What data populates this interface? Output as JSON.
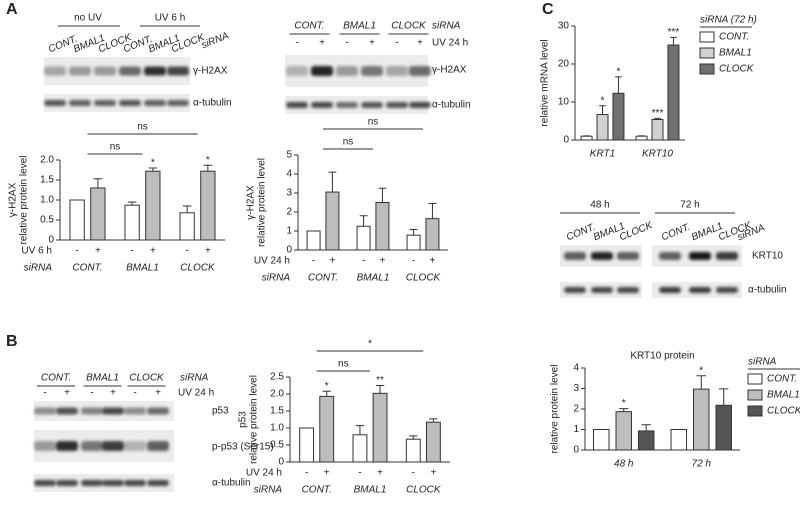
{
  "panel_labels": [
    "A",
    "B",
    "C"
  ],
  "blot_A1": {
    "groups": [
      "no UV",
      "UV 6 h"
    ],
    "lanes": [
      "CONT.",
      "BMAL1",
      "CLOCK",
      "CONT.",
      "BMAL1",
      "CLOCK"
    ],
    "lane_title": "siRNA",
    "rows": [
      "γ-H2AX",
      "α-tubulin"
    ]
  },
  "blot_A2": {
    "lanes": [
      "CONT.",
      "BMAL1",
      "CLOCK"
    ],
    "lane_title": "siRNA",
    "signs": [
      "-",
      "+",
      "-",
      "+",
      "-",
      "+"
    ],
    "sign_title": "UV 24 h",
    "rows": [
      "γ-H2AX",
      "α-tubulin"
    ]
  },
  "blot_B": {
    "lanes": [
      "CONT.",
      "BMAL1",
      "CLOCK"
    ],
    "lane_title": "siRNA",
    "signs": [
      "-",
      "+",
      "-",
      "+",
      "-",
      "+"
    ],
    "sign_title": "UV 24 h",
    "rows": [
      "p53",
      "p-p53 (Ser15)",
      "α-tubulin"
    ]
  },
  "blot_C": {
    "groups": [
      "48 h",
      "72 h"
    ],
    "lanes": [
      "CONT.",
      "BMAL1",
      "CLOCK",
      "CONT.",
      "BMAL1",
      "CLOCK"
    ],
    "lane_title": "siRNA",
    "rows": [
      "KRT10",
      "α-tubulin"
    ]
  },
  "chart_data": [
    {
      "type": "bar",
      "ylabel": [
        "γ-H2AX",
        "relative protein level"
      ],
      "categories": [
        "CONT.",
        "BMAL1",
        "CLOCK"
      ],
      "series_label": "UV 6 h",
      "category_label": "siRNA",
      "series": [
        {
          "name": "-",
          "color": "#ffffff",
          "values": [
            1.0,
            0.87,
            0.68
          ],
          "errors": [
            0,
            0.08,
            0.17
          ],
          "sig": [
            null,
            null,
            null
          ]
        },
        {
          "name": "+",
          "color": "#bdbdbd",
          "values": [
            1.3,
            1.72,
            1.72
          ],
          "errors": [
            0.23,
            0.08,
            0.15
          ],
          "sig": [
            null,
            "*",
            "*"
          ]
        }
      ],
      "brackets": [
        {
          "between": [
            "CONT.",
            "BMAL1"
          ],
          "label": "ns"
        },
        {
          "between": [
            "CONT.",
            "CLOCK"
          ],
          "label": "ns"
        }
      ],
      "ylim": [
        0,
        2
      ],
      "yticks": [
        0,
        0.5,
        {
          "value": 1,
          "label": "1.0"
        },
        1.5,
        {
          "value": 2,
          "label": "2.0"
        }
      ]
    },
    {
      "type": "bar",
      "ylabel": [
        "γ-H2AX",
        "relative protein level"
      ],
      "categories": [
        "CONT.",
        "BMAL1",
        "CLOCK"
      ],
      "series_label": "UV 24 h",
      "category_label": "siRNA",
      "series": [
        {
          "name": "-",
          "color": "#ffffff",
          "values": [
            1.0,
            1.25,
            0.78
          ],
          "errors": [
            0,
            0.55,
            0.3
          ],
          "sig": [
            null,
            null,
            null
          ]
        },
        {
          "name": "+",
          "color": "#bdbdbd",
          "values": [
            3.05,
            2.5,
            1.65
          ],
          "errors": [
            1.05,
            0.75,
            0.8
          ],
          "sig": [
            null,
            null,
            null
          ]
        }
      ],
      "brackets": [
        {
          "between": [
            "CONT.",
            "BMAL1"
          ],
          "label": "ns"
        },
        {
          "between": [
            "CONT.",
            "CLOCK"
          ],
          "label": "ns"
        }
      ],
      "ylim": [
        0,
        5
      ],
      "yticks": [
        0,
        1,
        2,
        3,
        4,
        5
      ]
    },
    {
      "type": "bar",
      "ylabel": [
        "p53",
        "relative protein level"
      ],
      "categories": [
        "CONT.",
        "BMAL1",
        "CLOCK"
      ],
      "series_label": "UV 24 h",
      "category_label": "siRNA",
      "series": [
        {
          "name": "-",
          "color": "#ffffff",
          "values": [
            1.0,
            0.8,
            0.67
          ],
          "errors": [
            0,
            0.27,
            0.1
          ],
          "sig": [
            null,
            null,
            null
          ]
        },
        {
          "name": "+",
          "color": "#bdbdbd",
          "values": [
            1.93,
            2.02,
            1.17
          ],
          "errors": [
            0.15,
            0.23,
            0.1
          ],
          "sig": [
            "*",
            "**",
            null
          ]
        }
      ],
      "brackets": [
        {
          "between": [
            "CONT.",
            "BMAL1"
          ],
          "label": "ns"
        },
        {
          "between": [
            "CONT.",
            "CLOCK"
          ],
          "label": "*"
        }
      ],
      "ylim": [
        0,
        2.5
      ],
      "yticks": [
        0,
        0.5,
        {
          "value": 1,
          "label": "1.0"
        },
        1.5,
        {
          "value": 2,
          "label": "2.0"
        },
        2.5
      ]
    },
    {
      "type": "bar",
      "ylabel": [
        "relative mRNA level"
      ],
      "categories": [
        "KRT1",
        "KRT10"
      ],
      "legend_title": "siRNA (72 h)",
      "series": [
        {
          "name": "CONT.",
          "color": "#ffffff",
          "values": [
            1,
            1
          ],
          "errors": [
            0.1,
            0.1
          ],
          "sig": [
            null,
            null
          ]
        },
        {
          "name": "BMAL1",
          "color": "#d0d0d0",
          "values": [
            6.7,
            5.4
          ],
          "errors": [
            2.3,
            0.3
          ],
          "sig": [
            "*",
            "***"
          ]
        },
        {
          "name": "CLOCK",
          "color": "#707070",
          "values": [
            12.3,
            25
          ],
          "errors": [
            4.3,
            2
          ],
          "sig": [
            "*",
            "***"
          ]
        }
      ],
      "ylim": [
        0,
        30
      ],
      "yticks": [
        0,
        10,
        20,
        30
      ]
    },
    {
      "type": "bar",
      "title": "KRT10 protein",
      "ylabel": [
        "relative protein level"
      ],
      "categories": [
        "48 h",
        "72 h"
      ],
      "legend_title": "siRNA",
      "series": [
        {
          "name": "CONT.",
          "color": "#ffffff",
          "values": [
            1,
            1
          ],
          "errors": [
            0,
            0
          ],
          "sig": [
            null,
            null
          ]
        },
        {
          "name": "BMAL1",
          "color": "#bdbdbd",
          "values": [
            1.87,
            2.97
          ],
          "errors": [
            0.15,
            0.65
          ],
          "sig": [
            "*",
            "*"
          ]
        },
        {
          "name": "CLOCK",
          "color": "#555555",
          "values": [
            0.93,
            2.18
          ],
          "errors": [
            0.3,
            0.8
          ],
          "sig": [
            null,
            null
          ]
        }
      ],
      "ylim": [
        0,
        4
      ],
      "yticks": [
        0,
        1,
        2,
        3,
        4
      ]
    }
  ]
}
